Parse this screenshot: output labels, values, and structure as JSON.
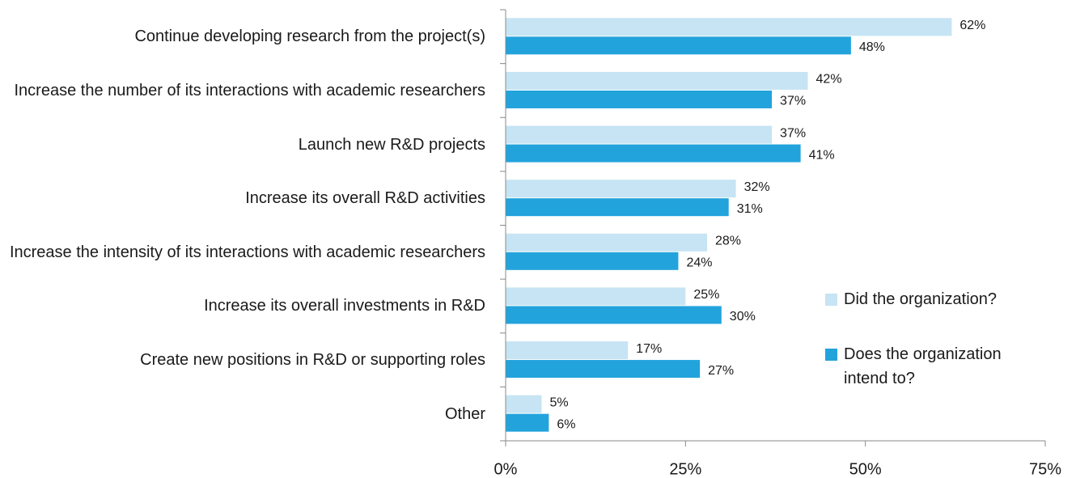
{
  "chart_data": {
    "type": "hbar",
    "categories": [
      "Continue developing research from the project(s)",
      "Increase the number of its interactions with academic researchers",
      "Launch new R&D projects",
      "Increase its overall R&D activities",
      "Increase the intensity of its interactions with academic researchers",
      "Increase its overall investments in R&D",
      "Create new positions in R&D or supporting roles",
      "Other"
    ],
    "series": [
      {
        "name": "Did the organization?",
        "color": "#c6e4f3",
        "values": [
          62,
          42,
          37,
          32,
          28,
          25,
          17,
          5
        ],
        "value_labels": [
          "62%",
          "42%",
          "37%",
          "32%",
          "28%",
          "25%",
          "17%",
          "5%"
        ]
      },
      {
        "name": "Does the organization intend to?",
        "color": "#22a3dc",
        "values": [
          48,
          37,
          41,
          31,
          24,
          30,
          27,
          6
        ],
        "value_labels": [
          "48%",
          "37%",
          "41%",
          "31%",
          "24%",
          "30%",
          "27%",
          "6%"
        ]
      }
    ],
    "xlim": [
      0,
      75
    ],
    "xticks": [
      {
        "value": 0,
        "label": "0%"
      },
      {
        "value": 25,
        "label": "25%"
      },
      {
        "value": 50,
        "label": "50%"
      },
      {
        "value": 75,
        "label": "75%"
      }
    ],
    "legend": "right"
  }
}
